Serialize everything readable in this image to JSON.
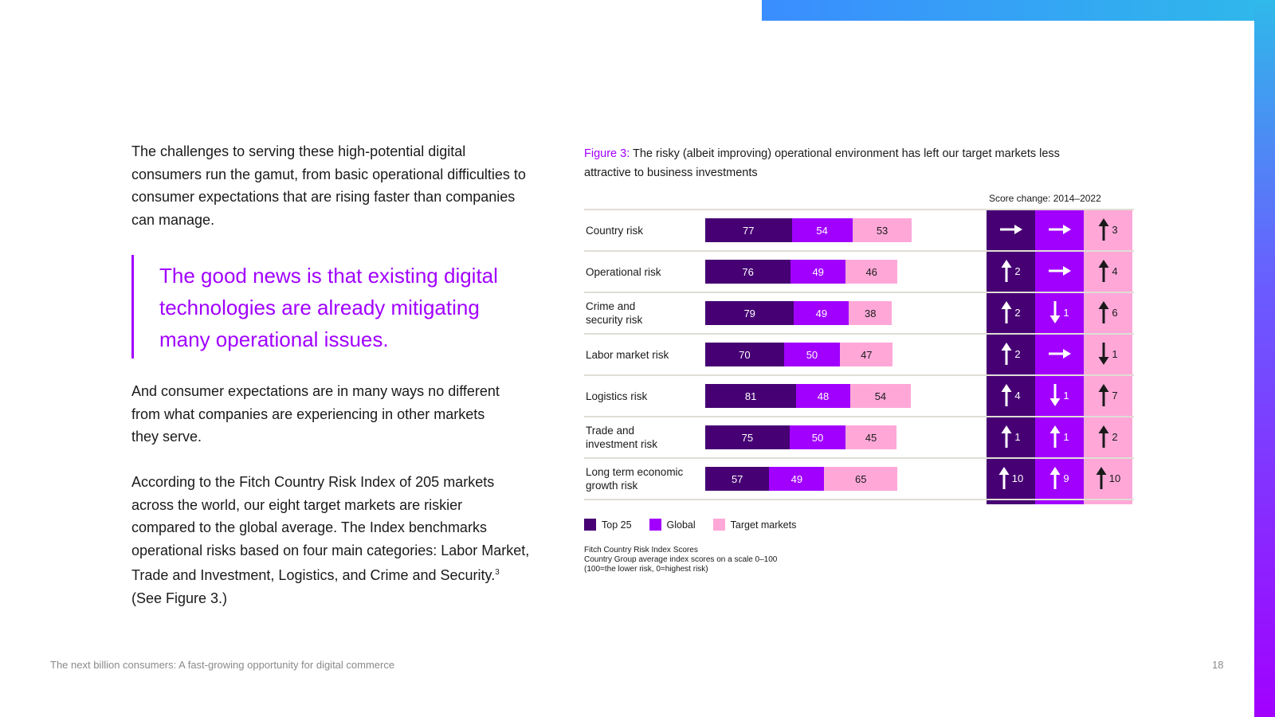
{
  "decor": {
    "accent": "#a100ff",
    "top25_color": "#460073",
    "global_color": "#a100ff",
    "target_color": "#ffa8d8"
  },
  "text": {
    "para1": "The challenges to serving these high-potential digital consumers run the gamut, from basic operational difficulties to consumer expectations that are rising faster than companies can manage.",
    "quote": "The good news is that existing digital technologies are already mitigating many operational issues.",
    "para2": "And consumer expectations are in many ways no different from what companies are experiencing in other markets they serve.",
    "para3_main": "According to the Fitch Country Risk Index of 205 markets across the world, our eight target markets are riskier compared to the global average. The Index benchmarks operational risks based on four main categories: Labor Market, Trade and Investment, Logistics, and Crime and Security.",
    "para3_sup": "3",
    "para3_tail": " (See Figure 3.)"
  },
  "figure": {
    "label": "Figure 3:",
    "caption": " The risky (albeit improving) operational environment has left our target markets less attractive to business investments",
    "score_change_header": "Score change: 2014–2022",
    "legend": {
      "top25": "Top 25",
      "global": "Global",
      "target": "Target markets"
    },
    "notes": {
      "line1": "Fitch Country Risk Index Scores",
      "line2": "Country Group average index scores on a scale 0–100",
      "line3": "(100=the lower risk, 0=highest risk)"
    }
  },
  "chart_data": {
    "type": "bar",
    "stacked": true,
    "orientation": "horizontal",
    "title": "Fitch Country Risk Index Scores",
    "categories": [
      "Country risk",
      "Operational risk",
      "Crime and security risk",
      "Labor market risk",
      "Logistics risk",
      "Trade and investment risk",
      "Long term economic growth risk"
    ],
    "category_lines": [
      [
        "Country risk"
      ],
      [
        "Operational risk"
      ],
      [
        "Crime and",
        "security risk"
      ],
      [
        "Labor market risk"
      ],
      [
        "Logistics risk"
      ],
      [
        "Trade and",
        "investment risk"
      ],
      [
        "Long term economic",
        "growth risk"
      ]
    ],
    "series": [
      {
        "name": "Top 25",
        "values": [
          77,
          76,
          79,
          70,
          81,
          75,
          57
        ]
      },
      {
        "name": "Global",
        "values": [
          54,
          49,
          49,
          50,
          48,
          50,
          49
        ]
      },
      {
        "name": "Target markets",
        "values": [
          53,
          46,
          38,
          47,
          54,
          45,
          65
        ]
      }
    ],
    "score_change": {
      "label": "Score change: 2014–2022",
      "series": [
        {
          "name": "Top 25",
          "direction": [
            "flat",
            "up",
            "up",
            "up",
            "up",
            "up",
            "up"
          ],
          "values": [
            "",
            "2",
            "2",
            "2",
            "4",
            "1",
            "10"
          ]
        },
        {
          "name": "Global",
          "direction": [
            "flat",
            "flat",
            "down",
            "flat",
            "down",
            "up",
            "up"
          ],
          "values": [
            "",
            "",
            "1",
            "",
            "1",
            "1",
            "9"
          ]
        },
        {
          "name": "Target markets",
          "direction": [
            "up",
            "up",
            "up",
            "down",
            "up",
            "up",
            "up"
          ],
          "values": [
            "3",
            "4",
            "6",
            "1",
            "7",
            "2",
            "10"
          ]
        }
      ]
    }
  },
  "footer": {
    "title": "The next billion consumers: A fast-growing opportunity for digital commerce",
    "page": "18"
  }
}
